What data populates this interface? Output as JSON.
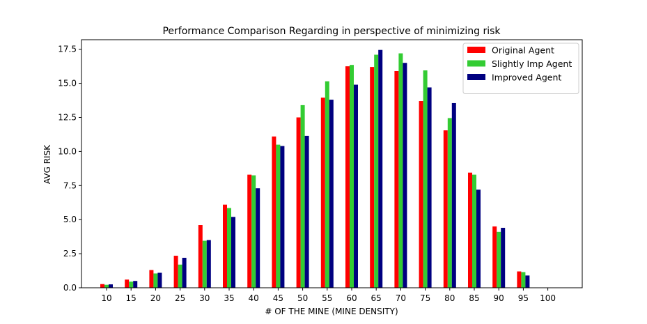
{
  "chart_data": {
    "type": "bar",
    "title": "Performance Comparison Regarding in perspective of minimizing risk",
    "xlabel": "# OF THE MINE (MINE DENSITY)",
    "ylabel": "AVG RISK",
    "x_ticks": [
      "10",
      "15",
      "20",
      "25",
      "30",
      "35",
      "40",
      "45",
      "50",
      "55",
      "60",
      "65",
      "70",
      "75",
      "80",
      "85",
      "90",
      "95",
      "100"
    ],
    "categories": [
      "10",
      "15",
      "20",
      "25",
      "30",
      "35",
      "40",
      "45",
      "50",
      "55",
      "60",
      "65",
      "70",
      "75",
      "80",
      "85",
      "90",
      "95",
      "100"
    ],
    "y_ticks": [
      "0.0",
      "2.5",
      "5.0",
      "7.5",
      "10.0",
      "12.5",
      "15.0",
      "17.5"
    ],
    "ylim": [
      0,
      18.2
    ],
    "grid": false,
    "legend_position": "top-right",
    "series": [
      {
        "name": "Original Agent",
        "color": "#ff0000",
        "values": [
          0.27,
          0.6,
          1.3,
          2.35,
          4.6,
          6.1,
          8.3,
          11.1,
          12.5,
          13.95,
          16.25,
          16.2,
          15.9,
          13.7,
          11.55,
          8.45,
          4.5,
          1.2,
          0
        ]
      },
      {
        "name": "Slightly Imp Agent",
        "color": "#33cc33",
        "values": [
          0.22,
          0.45,
          1.05,
          1.7,
          3.45,
          5.85,
          8.25,
          10.5,
          13.4,
          15.15,
          16.35,
          17.1,
          17.2,
          15.95,
          12.45,
          8.3,
          4.1,
          1.15,
          0
        ]
      },
      {
        "name": "Improved Agent",
        "color": "#000080",
        "values": [
          0.25,
          0.5,
          1.1,
          2.2,
          3.5,
          5.2,
          7.3,
          10.4,
          11.15,
          13.8,
          14.9,
          17.45,
          16.5,
          14.7,
          13.55,
          7.2,
          4.4,
          0.9,
          0
        ]
      }
    ]
  }
}
